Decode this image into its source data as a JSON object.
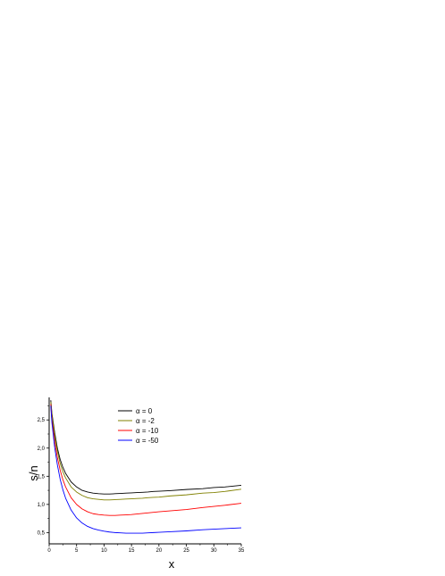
{
  "chart_data": {
    "type": "line",
    "xlabel": "x",
    "ylabel": "s/n",
    "xlim": [
      0,
      35
    ],
    "ylim": [
      0.3,
      2.9
    ],
    "xticks": [
      0,
      5,
      10,
      15,
      20,
      25,
      30,
      35
    ],
    "yticks": [
      0.5,
      1.0,
      1.5,
      2.0,
      2.5
    ],
    "ytick_labels": [
      "0,5",
      "1,0",
      "1,5",
      "2,0",
      "2,5"
    ],
    "grid": false,
    "legend_position": "top-center",
    "x": [
      0.3,
      0.5,
      1,
      1.5,
      2,
      2.5,
      3,
      4,
      5,
      6,
      7,
      8,
      9,
      10,
      11,
      12,
      13,
      14,
      15,
      16,
      17,
      18,
      19,
      20,
      22,
      25,
      28,
      30,
      32,
      35
    ],
    "series": [
      {
        "name": "α  =   0",
        "color": "#000000",
        "values": [
          2.85,
          2.62,
          2.28,
          2.0,
          1.8,
          1.66,
          1.55,
          1.4,
          1.31,
          1.25,
          1.22,
          1.2,
          1.19,
          1.185,
          1.185,
          1.19,
          1.195,
          1.2,
          1.205,
          1.21,
          1.215,
          1.22,
          1.23,
          1.235,
          1.245,
          1.265,
          1.28,
          1.3,
          1.31,
          1.34
        ]
      },
      {
        "name": "α  =  -2",
        "color": "#808000",
        "values": [
          2.82,
          2.58,
          2.22,
          1.94,
          1.73,
          1.58,
          1.47,
          1.31,
          1.22,
          1.16,
          1.12,
          1.1,
          1.09,
          1.08,
          1.08,
          1.085,
          1.09,
          1.095,
          1.1,
          1.105,
          1.11,
          1.12,
          1.125,
          1.13,
          1.15,
          1.17,
          1.2,
          1.21,
          1.23,
          1.27
        ]
      },
      {
        "name": "α  = -10",
        "color": "#ff0000",
        "values": [
          2.78,
          2.5,
          2.12,
          1.83,
          1.61,
          1.44,
          1.31,
          1.12,
          1.0,
          0.92,
          0.87,
          0.835,
          0.82,
          0.81,
          0.805,
          0.805,
          0.81,
          0.815,
          0.82,
          0.83,
          0.84,
          0.85,
          0.86,
          0.87,
          0.885,
          0.91,
          0.945,
          0.965,
          0.985,
          1.02
        ]
      },
      {
        "name": "α  = -50",
        "color": "#0000ff",
        "values": [
          2.75,
          2.45,
          2.02,
          1.7,
          1.45,
          1.26,
          1.11,
          0.9,
          0.76,
          0.67,
          0.61,
          0.57,
          0.545,
          0.525,
          0.51,
          0.5,
          0.495,
          0.49,
          0.49,
          0.49,
          0.49,
          0.495,
          0.5,
          0.505,
          0.515,
          0.53,
          0.55,
          0.56,
          0.57,
          0.585
        ]
      }
    ]
  }
}
